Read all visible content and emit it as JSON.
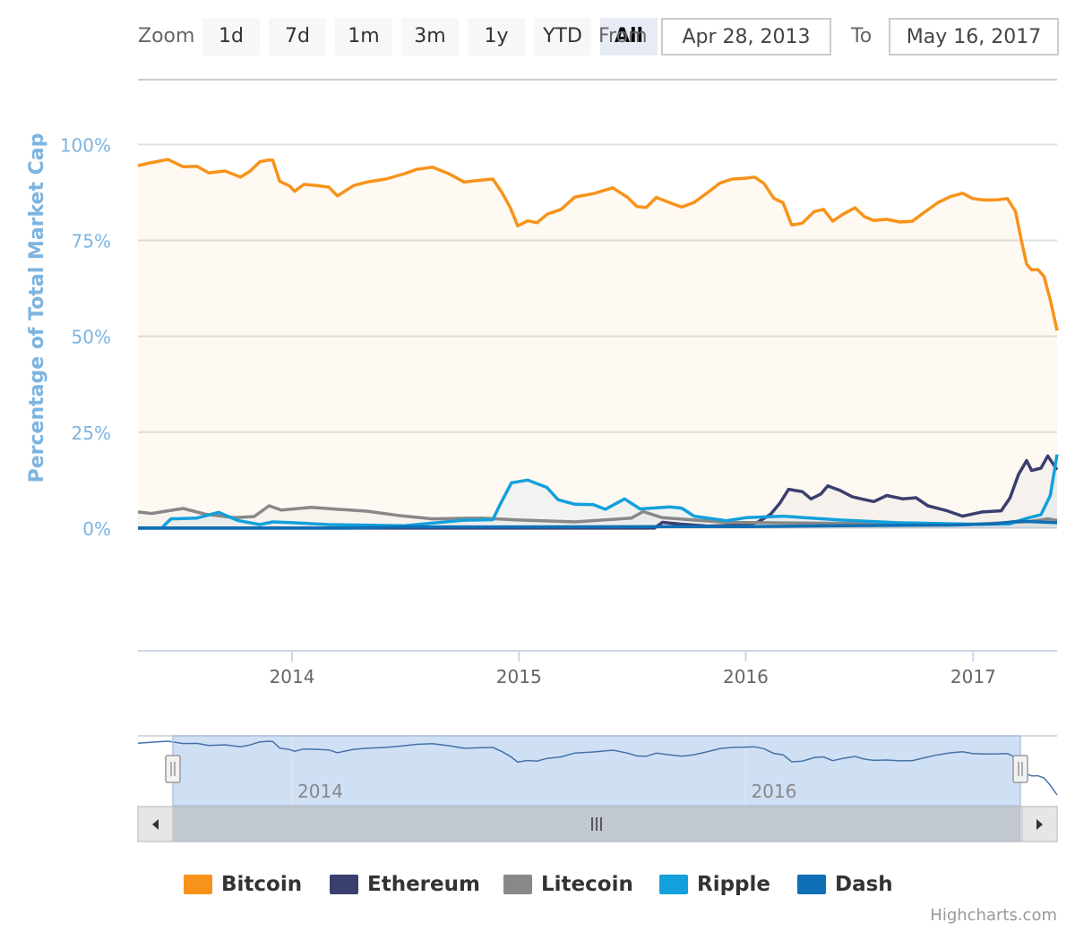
{
  "toolbar": {
    "zoom_label": "Zoom",
    "buttons": [
      "1d",
      "7d",
      "1m",
      "3m",
      "1y",
      "YTD",
      "All"
    ],
    "active_button": "All",
    "from_label": "From",
    "from_value": "Apr 28, 2013",
    "to_label": "To",
    "to_value": "May 16, 2017"
  },
  "credits": "Highcharts.com",
  "colors": {
    "bitcoin": "#f7931a",
    "ethereum": "#3b3f6e",
    "litecoin": "#888888",
    "ripple": "#13a0dc",
    "dash": "#0f6fb5",
    "axis_label": "#7db4e0",
    "navigator_fill": "#cfe0f5"
  },
  "icons": {
    "scroll_left": "chevron-left-icon",
    "scroll_right": "chevron-right-icon",
    "scroll_grip": "grip-icon",
    "handle": "resize-handle-icon"
  },
  "chart_data": {
    "type": "area",
    "ylabel": "Percentage of Total Market Cap",
    "y_ticks": [
      "0%",
      "25%",
      "50%",
      "75%",
      "100%"
    ],
    "y_tick_values": [
      0,
      25,
      50,
      75,
      100
    ],
    "ylim": [
      -32,
      112
    ],
    "x_range": [
      "2013-04-28",
      "2017-05-16"
    ],
    "x_ticks": [
      "2014",
      "2015",
      "2016",
      "2017"
    ],
    "x_tick_dates": [
      "2014-01-01",
      "2015-01-01",
      "2016-01-01",
      "2017-01-01"
    ],
    "navigator_ticks": [
      "2014",
      "2016"
    ],
    "navigator_tick_dates": [
      "2014-01-01",
      "2016-01-01"
    ],
    "grid": true,
    "legend_position": "bottom",
    "series": [
      {
        "name": "Bitcoin",
        "color_key": "bitcoin",
        "points": [
          [
            "2013-04-28",
            94.5
          ],
          [
            "2013-05-20",
            95.3
          ],
          [
            "2013-06-15",
            96.1
          ],
          [
            "2013-07-10",
            94.2
          ],
          [
            "2013-08-01",
            94.3
          ],
          [
            "2013-08-20",
            92.6
          ],
          [
            "2013-09-15",
            93.1
          ],
          [
            "2013-10-10",
            91.5
          ],
          [
            "2013-10-25",
            93.0
          ],
          [
            "2013-11-10",
            95.5
          ],
          [
            "2013-11-25",
            96.0
          ],
          [
            "2013-12-01",
            95.9
          ],
          [
            "2013-12-12",
            90.4
          ],
          [
            "2013-12-28",
            89.2
          ],
          [
            "2014-01-05",
            87.8
          ],
          [
            "2014-01-20",
            89.6
          ],
          [
            "2014-02-10",
            89.3
          ],
          [
            "2014-03-01",
            88.9
          ],
          [
            "2014-03-15",
            86.6
          ],
          [
            "2014-04-10",
            89.3
          ],
          [
            "2014-05-01",
            90.2
          ],
          [
            "2014-06-01",
            91.0
          ],
          [
            "2014-07-01",
            92.4
          ],
          [
            "2014-07-20",
            93.5
          ],
          [
            "2014-08-15",
            94.1
          ],
          [
            "2014-09-10",
            92.4
          ],
          [
            "2014-10-05",
            90.2
          ],
          [
            "2014-10-25",
            90.6
          ],
          [
            "2014-11-20",
            91.0
          ],
          [
            "2014-12-05",
            87.4
          ],
          [
            "2014-12-18",
            83.6
          ],
          [
            "2014-12-30",
            78.8
          ],
          [
            "2015-01-15",
            80.1
          ],
          [
            "2015-01-30",
            79.6
          ],
          [
            "2015-02-15",
            81.8
          ],
          [
            "2015-03-10",
            83.1
          ],
          [
            "2015-04-01",
            86.3
          ],
          [
            "2015-05-01",
            87.2
          ],
          [
            "2015-06-01",
            88.7
          ],
          [
            "2015-06-25",
            86.2
          ],
          [
            "2015-07-10",
            83.8
          ],
          [
            "2015-07-25",
            83.6
          ],
          [
            "2015-08-10",
            86.2
          ],
          [
            "2015-09-01",
            84.8
          ],
          [
            "2015-09-20",
            83.7
          ],
          [
            "2015-10-10",
            84.9
          ],
          [
            "2015-11-01",
            87.5
          ],
          [
            "2015-11-20",
            89.9
          ],
          [
            "2015-12-10",
            91.0
          ],
          [
            "2015-12-31",
            91.2
          ],
          [
            "2016-01-15",
            91.5
          ],
          [
            "2016-01-30",
            89.9
          ],
          [
            "2016-02-15",
            86.0
          ],
          [
            "2016-03-01",
            84.8
          ],
          [
            "2016-03-15",
            79.0
          ],
          [
            "2016-04-01",
            79.5
          ],
          [
            "2016-04-20",
            82.5
          ],
          [
            "2016-05-05",
            83.1
          ],
          [
            "2016-05-20",
            80.0
          ],
          [
            "2016-06-05",
            81.8
          ],
          [
            "2016-06-25",
            83.5
          ],
          [
            "2016-07-10",
            81.2
          ],
          [
            "2016-07-25",
            80.2
          ],
          [
            "2016-08-15",
            80.5
          ],
          [
            "2016-09-05",
            79.8
          ],
          [
            "2016-09-25",
            80.0
          ],
          [
            "2016-10-15",
            82.4
          ],
          [
            "2016-11-05",
            84.8
          ],
          [
            "2016-11-25",
            86.4
          ],
          [
            "2016-12-15",
            87.3
          ],
          [
            "2016-12-31",
            85.9
          ],
          [
            "2017-01-20",
            85.5
          ],
          [
            "2017-02-10",
            85.6
          ],
          [
            "2017-02-25",
            85.9
          ],
          [
            "2017-03-10",
            82.6
          ],
          [
            "2017-03-20",
            74.6
          ],
          [
            "2017-03-28",
            68.8
          ],
          [
            "2017-04-05",
            67.3
          ],
          [
            "2017-04-15",
            67.4
          ],
          [
            "2017-04-25",
            65.6
          ],
          [
            "2017-05-05",
            59.5
          ],
          [
            "2017-05-16",
            51.5
          ]
        ]
      },
      {
        "name": "Ethereum",
        "color_key": "ethereum",
        "points": [
          [
            "2013-04-28",
            0
          ],
          [
            "2015-08-07",
            0
          ],
          [
            "2015-08-20",
            1.5
          ],
          [
            "2015-09-20",
            1.0
          ],
          [
            "2015-11-01",
            0.5
          ],
          [
            "2015-12-31",
            0.8
          ],
          [
            "2016-01-20",
            1.5
          ],
          [
            "2016-02-10",
            3.6
          ],
          [
            "2016-02-25",
            6.5
          ],
          [
            "2016-03-10",
            10.1
          ],
          [
            "2016-04-01",
            9.5
          ],
          [
            "2016-04-15",
            7.6
          ],
          [
            "2016-05-01",
            8.9
          ],
          [
            "2016-05-12",
            11.0
          ],
          [
            "2016-06-01",
            9.8
          ],
          [
            "2016-06-20",
            8.2
          ],
          [
            "2016-07-05",
            7.6
          ],
          [
            "2016-07-25",
            6.9
          ],
          [
            "2016-08-15",
            8.5
          ],
          [
            "2016-09-10",
            7.6
          ],
          [
            "2016-10-01",
            7.9
          ],
          [
            "2016-10-20",
            5.8
          ],
          [
            "2016-11-20",
            4.5
          ],
          [
            "2016-12-15",
            3.1
          ],
          [
            "2017-01-15",
            4.2
          ],
          [
            "2017-02-15",
            4.5
          ],
          [
            "2017-03-01",
            7.8
          ],
          [
            "2017-03-15",
            14.0
          ],
          [
            "2017-03-28",
            17.6
          ],
          [
            "2017-04-05",
            15.0
          ],
          [
            "2017-04-20",
            15.6
          ],
          [
            "2017-05-01",
            18.8
          ],
          [
            "2017-05-16",
            15.2
          ]
        ]
      },
      {
        "name": "Litecoin",
        "color_key": "litecoin",
        "points": [
          [
            "2013-04-28",
            4.2
          ],
          [
            "2013-05-20",
            3.8
          ],
          [
            "2013-06-15",
            4.5
          ],
          [
            "2013-07-10",
            5.1
          ],
          [
            "2013-08-15",
            3.6
          ],
          [
            "2013-10-01",
            2.7
          ],
          [
            "2013-11-01",
            3.0
          ],
          [
            "2013-11-25",
            5.8
          ],
          [
            "2013-12-15",
            4.7
          ],
          [
            "2014-02-01",
            5.4
          ],
          [
            "2014-03-15",
            4.9
          ],
          [
            "2014-05-01",
            4.4
          ],
          [
            "2014-06-20",
            3.3
          ],
          [
            "2014-08-15",
            2.4
          ],
          [
            "2014-11-01",
            2.6
          ],
          [
            "2015-01-01",
            2.1
          ],
          [
            "2015-04-01",
            1.6
          ],
          [
            "2015-07-01",
            2.6
          ],
          [
            "2015-07-20",
            4.3
          ],
          [
            "2015-08-20",
            2.7
          ],
          [
            "2015-12-01",
            1.5
          ],
          [
            "2016-04-01",
            1.3
          ],
          [
            "2016-09-01",
            1.1
          ],
          [
            "2017-01-01",
            1.0
          ],
          [
            "2017-04-01",
            1.7
          ],
          [
            "2017-05-01",
            2.4
          ],
          [
            "2017-05-16",
            2.0
          ]
        ]
      },
      {
        "name": "Ripple",
        "color_key": "ripple",
        "points": [
          [
            "2013-04-28",
            0
          ],
          [
            "2013-06-05",
            0
          ],
          [
            "2013-06-20",
            2.4
          ],
          [
            "2013-08-01",
            2.6
          ],
          [
            "2013-09-05",
            4.1
          ],
          [
            "2013-10-05",
            2.0
          ],
          [
            "2013-11-10",
            0.9
          ],
          [
            "2013-12-01",
            1.6
          ],
          [
            "2014-01-01",
            1.4
          ],
          [
            "2014-03-01",
            0.9
          ],
          [
            "2014-07-01",
            0.6
          ],
          [
            "2014-10-01",
            2.0
          ],
          [
            "2014-11-20",
            2.2
          ],
          [
            "2014-12-02",
            6.2
          ],
          [
            "2014-12-20",
            11.8
          ],
          [
            "2015-01-15",
            12.5
          ],
          [
            "2015-02-15",
            10.6
          ],
          [
            "2015-03-05",
            7.4
          ],
          [
            "2015-04-01",
            6.2
          ],
          [
            "2015-05-01",
            6.1
          ],
          [
            "2015-05-20",
            4.9
          ],
          [
            "2015-06-20",
            7.6
          ],
          [
            "2015-07-15",
            5.0
          ],
          [
            "2015-09-01",
            5.5
          ],
          [
            "2015-09-20",
            5.2
          ],
          [
            "2015-10-10",
            3.1
          ],
          [
            "2015-12-01",
            1.9
          ],
          [
            "2016-01-01",
            2.7
          ],
          [
            "2016-03-01",
            3.1
          ],
          [
            "2016-06-01",
            2.1
          ],
          [
            "2016-09-01",
            1.4
          ],
          [
            "2017-01-01",
            1.0
          ],
          [
            "2017-03-01",
            1.1
          ],
          [
            "2017-03-25",
            2.4
          ],
          [
            "2017-04-20",
            3.5
          ],
          [
            "2017-05-05",
            8.5
          ],
          [
            "2017-05-16",
            19.2
          ]
        ]
      },
      {
        "name": "Dash",
        "color_key": "dash",
        "points": [
          [
            "2013-04-28",
            0
          ],
          [
            "2014-04-01",
            0
          ],
          [
            "2014-07-01",
            0.3
          ],
          [
            "2015-01-01",
            0.3
          ],
          [
            "2016-01-01",
            0.4
          ],
          [
            "2016-06-01",
            0.6
          ],
          [
            "2016-12-01",
            0.8
          ],
          [
            "2017-02-01",
            1.1
          ],
          [
            "2017-03-15",
            1.8
          ],
          [
            "2017-04-15",
            1.6
          ],
          [
            "2017-05-16",
            1.4
          ]
        ]
      }
    ],
    "navigator_series": "Bitcoin"
  },
  "legend": [
    {
      "label": "Bitcoin",
      "color_key": "bitcoin"
    },
    {
      "label": "Ethereum",
      "color_key": "ethereum"
    },
    {
      "label": "Litecoin",
      "color_key": "litecoin"
    },
    {
      "label": "Ripple",
      "color_key": "ripple"
    },
    {
      "label": "Dash",
      "color_key": "dash"
    }
  ]
}
